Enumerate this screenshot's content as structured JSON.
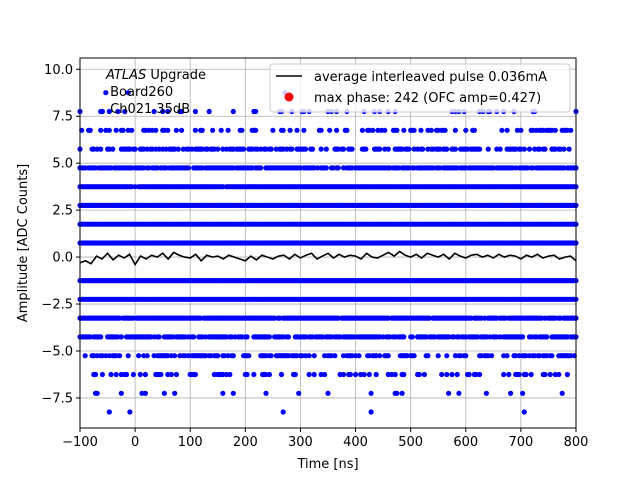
{
  "chart_data": {
    "type": "scatter",
    "xlabel": "Time [ns]",
    "ylabel": "Amplitude [ADC Counts]",
    "xlim": [
      -100,
      800
    ],
    "ylim": [
      -9.1,
      10.6
    ],
    "x_ticks": [
      -100,
      0,
      100,
      200,
      300,
      400,
      500,
      600,
      700,
      800
    ],
    "x_tick_labels": [
      "−100",
      "0",
      "100",
      "200",
      "300",
      "400",
      "500",
      "600",
      "700",
      "800"
    ],
    "y_ticks": [
      -7.5,
      -5.0,
      -2.5,
      0.0,
      2.5,
      5.0,
      7.5,
      10.0
    ],
    "y_tick_labels": [
      "−7.5",
      "−5.0",
      "−2.5",
      "0.0",
      "2.5",
      "5.0",
      "7.5",
      "10.0"
    ],
    "grid": true,
    "legend_position": "top-right",
    "annotation": {
      "line1_italic": "ATLAS",
      "line1_rest": " Upgrade",
      "line2": " Board260",
      "line3": " Ch021 35dB"
    },
    "series": [
      {
        "name": "average interleaved pulse 0.036mA",
        "kind": "line",
        "color": "#000000",
        "x": [
          -100,
          -90,
          -80,
          -70,
          -60,
          -50,
          -40,
          -30,
          -20,
          -10,
          0,
          10,
          20,
          30,
          40,
          50,
          60,
          70,
          80,
          90,
          100,
          110,
          120,
          130,
          140,
          150,
          160,
          170,
          180,
          190,
          200,
          210,
          220,
          230,
          240,
          250,
          260,
          270,
          280,
          290,
          300,
          310,
          320,
          330,
          340,
          350,
          360,
          370,
          380,
          390,
          400,
          410,
          420,
          430,
          440,
          450,
          460,
          470,
          480,
          490,
          500,
          510,
          520,
          530,
          540,
          550,
          560,
          570,
          580,
          590,
          600,
          610,
          620,
          630,
          640,
          650,
          660,
          670,
          680,
          690,
          700,
          710,
          720,
          730,
          740,
          750,
          760,
          770,
          780,
          790,
          800
        ],
        "y": [
          -0.3,
          -0.2,
          -0.35,
          0.05,
          -0.1,
          0.2,
          -0.15,
          0.1,
          -0.05,
          0.15,
          -0.4,
          0.05,
          -0.1,
          0.1,
          0.0,
          0.2,
          -0.1,
          0.25,
          0.1,
          0.0,
          -0.05,
          0.15,
          -0.2,
          0.1,
          0.0,
          0.05,
          -0.1,
          0.1,
          0.0,
          -0.1,
          -0.2,
          0.05,
          -0.15,
          0.1,
          0.0,
          -0.1,
          0.05,
          0.1,
          -0.1,
          0.15,
          -0.05,
          0.1,
          0.2,
          -0.1,
          0.05,
          0.2,
          -0.05,
          0.15,
          0.0,
          0.1,
          0.05,
          -0.1,
          0.2,
          0.0,
          -0.05,
          0.1,
          0.25,
          0.05,
          0.3,
          0.1,
          0.0,
          0.15,
          -0.05,
          0.2,
          0.1,
          0.0,
          0.15,
          -0.1,
          0.2,
          0.05,
          -0.05,
          0.1,
          0.15,
          0.0,
          0.1,
          -0.05,
          0.15,
          0.0,
          0.1,
          0.05,
          -0.1,
          0.1,
          0.0,
          0.15,
          -0.05,
          0.05,
          0.1,
          -0.1,
          0.0,
          0.05,
          -0.2
        ]
      },
      {
        "name": "max phase: 242 (OFC amp=0.427)",
        "kind": "scatter",
        "color": "#ff0000",
        "x": [],
        "y": []
      },
      {
        "name": "",
        "kind": "scatter",
        "color": "#0000ff",
        "levels": [
          {
            "y": 0.75,
            "density": 1.0
          },
          {
            "y": 1.75,
            "density": 1.0
          },
          {
            "y": 2.75,
            "density": 1.0
          },
          {
            "y": 3.75,
            "density": 0.97
          },
          {
            "y": 4.75,
            "density": 0.85
          },
          {
            "y": 5.75,
            "density": 0.55
          },
          {
            "y": 6.75,
            "density": 0.3
          },
          {
            "y": 7.75,
            "density": 0.12
          },
          {
            "y": 8.75,
            "density": 0.015
          },
          {
            "y": -1.25,
            "density": 1.0
          },
          {
            "y": -2.25,
            "density": 1.0
          },
          {
            "y": -3.25,
            "density": 0.96
          },
          {
            "y": -4.25,
            "density": 0.8
          },
          {
            "y": -5.25,
            "density": 0.5
          },
          {
            "y": -6.25,
            "density": 0.25
          },
          {
            "y": -7.25,
            "density": 0.08
          },
          {
            "y": -8.25,
            "density": 0.015
          }
        ],
        "x_range": [
          -100,
          800
        ],
        "x_step": 3.125
      }
    ]
  }
}
